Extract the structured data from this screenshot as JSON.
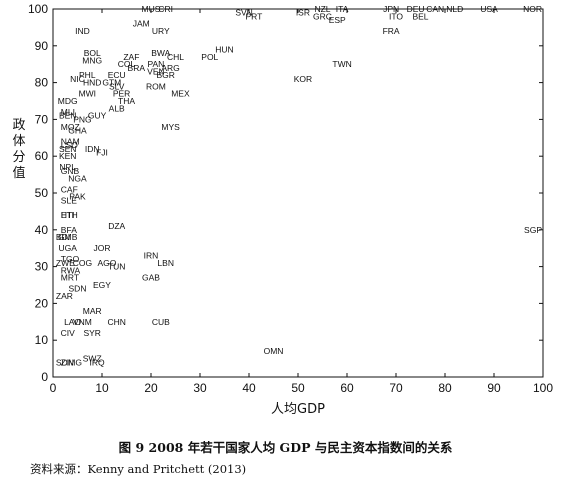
{
  "chart_data": {
    "type": "scatter",
    "xlabel": "人均GDP",
    "ylabel": "政体分值",
    "xlim": [
      0,
      100
    ],
    "ylim": [
      0,
      100
    ],
    "xticks": [
      0,
      10,
      20,
      30,
      40,
      50,
      60,
      70,
      80,
      90,
      100
    ],
    "yticks": [
      0,
      10,
      20,
      30,
      40,
      50,
      60,
      70,
      80,
      90,
      100
    ],
    "grid": false,
    "legend": "none",
    "points": [
      {
        "label": "MUS",
        "x": 20,
        "y": 100
      },
      {
        "label": "CRI",
        "x": 23,
        "y": 100
      },
      {
        "label": "SVN",
        "x": 39,
        "y": 99
      },
      {
        "label": "PRT",
        "x": 41,
        "y": 98
      },
      {
        "label": "NZL",
        "x": 55,
        "y": 100
      },
      {
        "label": "ITA",
        "x": 59,
        "y": 100
      },
      {
        "label": "ISR",
        "x": 51,
        "y": 99
      },
      {
        "label": "GRC",
        "x": 55,
        "y": 98
      },
      {
        "label": "ESP",
        "x": 58,
        "y": 97
      },
      {
        "label": "JPN",
        "x": 69,
        "y": 100
      },
      {
        "label": "DEU",
        "x": 74,
        "y": 100
      },
      {
        "label": "ITO",
        "x": 70,
        "y": 98
      },
      {
        "label": "BEL",
        "x": 75,
        "y": 98
      },
      {
        "label": "CAN",
        "x": 78,
        "y": 100
      },
      {
        "label": "NLD",
        "x": 82,
        "y": 100
      },
      {
        "label": "USA",
        "x": 89,
        "y": 100
      },
      {
        "label": "NOR",
        "x": 101,
        "y": 100
      },
      {
        "label": "FRA",
        "x": 69,
        "y": 94
      },
      {
        "label": "JAM",
        "x": 18,
        "y": 96
      },
      {
        "label": "URY",
        "x": 22,
        "y": 94
      },
      {
        "label": "IND",
        "x": 6,
        "y": 94
      },
      {
        "label": "HUN",
        "x": 35,
        "y": 89
      },
      {
        "label": "BOL",
        "x": 8,
        "y": 88
      },
      {
        "label": "BWA",
        "x": 22,
        "y": 88
      },
      {
        "label": "CHL",
        "x": 25,
        "y": 87
      },
      {
        "label": "POL",
        "x": 32,
        "y": 87
      },
      {
        "label": "MNG",
        "x": 8,
        "y": 86
      },
      {
        "label": "ZAF",
        "x": 16,
        "y": 87
      },
      {
        "label": "COL",
        "x": 15,
        "y": 85
      },
      {
        "label": "BRA",
        "x": 17,
        "y": 84
      },
      {
        "label": "PAN",
        "x": 21,
        "y": 85
      },
      {
        "label": "ARG",
        "x": 24,
        "y": 84
      },
      {
        "label": "VEN",
        "x": 21,
        "y": 83
      },
      {
        "label": "BGR",
        "x": 23,
        "y": 82
      },
      {
        "label": "TWN",
        "x": 59,
        "y": 85
      },
      {
        "label": "PHL",
        "x": 7,
        "y": 82
      },
      {
        "label": "ECU",
        "x": 13,
        "y": 82
      },
      {
        "label": "NIC",
        "x": 5,
        "y": 81
      },
      {
        "label": "HND",
        "x": 8,
        "y": 80
      },
      {
        "label": "GTM",
        "x": 12,
        "y": 80
      },
      {
        "label": "SLV",
        "x": 13,
        "y": 79
      },
      {
        "label": "KOR",
        "x": 51,
        "y": 81
      },
      {
        "label": "ROM",
        "x": 21,
        "y": 79
      },
      {
        "label": "MWI",
        "x": 7,
        "y": 77
      },
      {
        "label": "PER",
        "x": 14,
        "y": 77
      },
      {
        "label": "MEX",
        "x": 26,
        "y": 77
      },
      {
        "label": "THA",
        "x": 15,
        "y": 75
      },
      {
        "label": "MDG",
        "x": 3,
        "y": 75
      },
      {
        "label": "ALB",
        "x": 13,
        "y": 73
      },
      {
        "label": "MLI",
        "x": 2,
        "y": 72
      },
      {
        "label": "BEN",
        "x": 3,
        "y": 71
      },
      {
        "label": "GUY",
        "x": 9,
        "y": 71
      },
      {
        "label": "PNG",
        "x": 6,
        "y": 70
      },
      {
        "label": "MYS",
        "x": 24,
        "y": 68
      },
      {
        "label": "MOZ",
        "x": 2,
        "y": 68
      },
      {
        "label": "GHA",
        "x": 5,
        "y": 67
      },
      {
        "label": "NAM",
        "x": 2,
        "y": 64
      },
      {
        "label": "LSO",
        "x": 2,
        "y": 63
      },
      {
        "label": "SEN",
        "x": 3,
        "y": 62
      },
      {
        "label": "IDN",
        "x": 8,
        "y": 62
      },
      {
        "label": "FJI",
        "x": 10,
        "y": 61
      },
      {
        "label": "KEN",
        "x": 3,
        "y": 60
      },
      {
        "label": "NPL",
        "x": 3,
        "y": 57
      },
      {
        "label": "GNB",
        "x": 2,
        "y": 56
      },
      {
        "label": "NGA",
        "x": 5,
        "y": 54
      },
      {
        "label": "CAF",
        "x": 2,
        "y": 51
      },
      {
        "label": "PAK",
        "x": 5,
        "y": 49
      },
      {
        "label": "SLE",
        "x": 2,
        "y": 48
      },
      {
        "label": "ETH",
        "x": 2,
        "y": 44
      },
      {
        "label": "HTI",
        "x": 3,
        "y": 44
      },
      {
        "label": "DZA",
        "x": 13,
        "y": 41
      },
      {
        "label": "BFA",
        "x": 2,
        "y": 40
      },
      {
        "label": "BDI",
        "x": 1,
        "y": 38
      },
      {
        "label": "GMB",
        "x": 3,
        "y": 38
      },
      {
        "label": "UGA",
        "x": 3,
        "y": 35
      },
      {
        "label": "JOR",
        "x": 10,
        "y": 35
      },
      {
        "label": "IRN",
        "x": 20,
        "y": 33
      },
      {
        "label": "TGO",
        "x": 2,
        "y": 32
      },
      {
        "label": "LBN",
        "x": 23,
        "y": 31
      },
      {
        "label": "ZWE",
        "x": 1,
        "y": 31
      },
      {
        "label": "COG",
        "x": 6,
        "y": 31
      },
      {
        "label": "AGO",
        "x": 11,
        "y": 31
      },
      {
        "label": "TUN",
        "x": 13,
        "y": 30
      },
      {
        "label": "RWA",
        "x": 2,
        "y": 29
      },
      {
        "label": "GAB",
        "x": 20,
        "y": 27
      },
      {
        "label": "MRT",
        "x": 2,
        "y": 27
      },
      {
        "label": "EGY",
        "x": 10,
        "y": 25
      },
      {
        "label": "SDN",
        "x": 5,
        "y": 24
      },
      {
        "label": "ZAR",
        "x": 1,
        "y": 22
      },
      {
        "label": "MAR",
        "x": 8,
        "y": 18
      },
      {
        "label": "LAO",
        "x": 4,
        "y": 15
      },
      {
        "label": "VNM",
        "x": 6,
        "y": 15
      },
      {
        "label": "CHN",
        "x": 13,
        "y": 15
      },
      {
        "label": "CUB",
        "x": 22,
        "y": 15
      },
      {
        "label": "CIV",
        "x": 3,
        "y": 12
      },
      {
        "label": "SYR",
        "x": 8,
        "y": 12
      },
      {
        "label": "OMN",
        "x": 45,
        "y": 7
      },
      {
        "label": "SWZ",
        "x": 8,
        "y": 5
      },
      {
        "label": "ZIMG",
        "x": 2,
        "y": 4
      },
      {
        "label": "SDN",
        "x": 1,
        "y": 4
      },
      {
        "label": "IRQ",
        "x": 9,
        "y": 4
      },
      {
        "label": "SGP",
        "x": 99,
        "y": 40
      }
    ]
  },
  "caption": "图 9    2008 年若干国家人均 GDP 与民主资本指数间的关系",
  "source": "资料来源：Kenny and Pritchett (2013)"
}
